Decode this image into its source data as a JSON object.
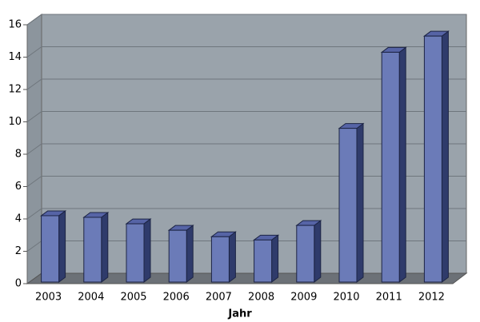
{
  "chart_data": {
    "type": "bar3d",
    "x_label": "Jahr",
    "categories": [
      "2003",
      "2004",
      "2005",
      "2006",
      "2007",
      "2008",
      "2009",
      "2010",
      "2011",
      "2012"
    ],
    "values": [
      4.2,
      4.1,
      3.7,
      3.3,
      2.9,
      2.7,
      3.6,
      9.6,
      14.3,
      15.3
    ],
    "color": "#6b7bb8",
    "ylim": [
      0,
      16
    ],
    "yticks": [
      0,
      2,
      4,
      6,
      8,
      10,
      12,
      14,
      16
    ],
    "grid": true
  }
}
